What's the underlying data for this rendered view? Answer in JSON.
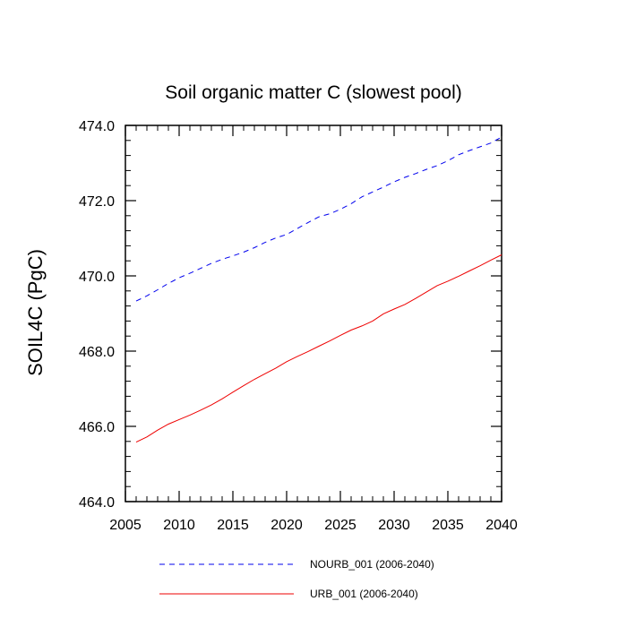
{
  "chart_data": {
    "type": "line",
    "title": "Soil organic matter C (slowest pool)",
    "xlabel": "",
    "ylabel": "SOIL4C  (PgC)",
    "xlim": [
      2005,
      2040
    ],
    "ylim": [
      464.0,
      474.0
    ],
    "x_ticks": [
      2005,
      2010,
      2015,
      2020,
      2025,
      2030,
      2035,
      2040
    ],
    "x_tick_labels": [
      "2005",
      "2010",
      "2015",
      "2020",
      "2025",
      "2030",
      "2035",
      "2040"
    ],
    "y_ticks": [
      464.0,
      466.0,
      468.0,
      470.0,
      472.0,
      474.0
    ],
    "y_tick_labels": [
      "464.0",
      "466.0",
      "468.0",
      "470.0",
      "472.0",
      "474.0"
    ],
    "grid": false,
    "legend_position": "bottom",
    "x": [
      2006,
      2007,
      2008,
      2009,
      2010,
      2011,
      2012,
      2013,
      2014,
      2015,
      2016,
      2017,
      2018,
      2019,
      2020,
      2021,
      2022,
      2023,
      2024,
      2025,
      2026,
      2027,
      2028,
      2029,
      2030,
      2031,
      2032,
      2033,
      2034,
      2035,
      2036,
      2037,
      2038,
      2039,
      2040
    ],
    "series": [
      {
        "name": "NOURB_001 (2006-2040)",
        "color": "#0000ee",
        "style": "dashed",
        "values": [
          469.33,
          469.47,
          469.63,
          469.8,
          469.95,
          470.07,
          470.2,
          470.33,
          470.44,
          470.53,
          470.63,
          470.75,
          470.89,
          471.01,
          471.1,
          471.26,
          471.42,
          471.57,
          471.65,
          471.77,
          471.92,
          472.1,
          472.23,
          472.36,
          472.5,
          472.62,
          472.72,
          472.83,
          472.93,
          473.06,
          473.22,
          473.33,
          473.43,
          473.53,
          473.69
        ]
      },
      {
        "name": "URB_001 (2006-2040)",
        "color": "#ee0000",
        "style": "solid",
        "values": [
          465.58,
          465.72,
          465.9,
          466.06,
          466.18,
          466.3,
          466.43,
          466.57,
          466.73,
          466.91,
          467.08,
          467.25,
          467.4,
          467.55,
          467.72,
          467.86,
          467.99,
          468.13,
          468.27,
          468.42,
          468.56,
          468.67,
          468.8,
          468.99,
          469.12,
          469.24,
          469.4,
          469.57,
          469.74,
          469.86,
          469.99,
          470.13,
          470.27,
          470.42,
          470.56
        ]
      }
    ]
  }
}
